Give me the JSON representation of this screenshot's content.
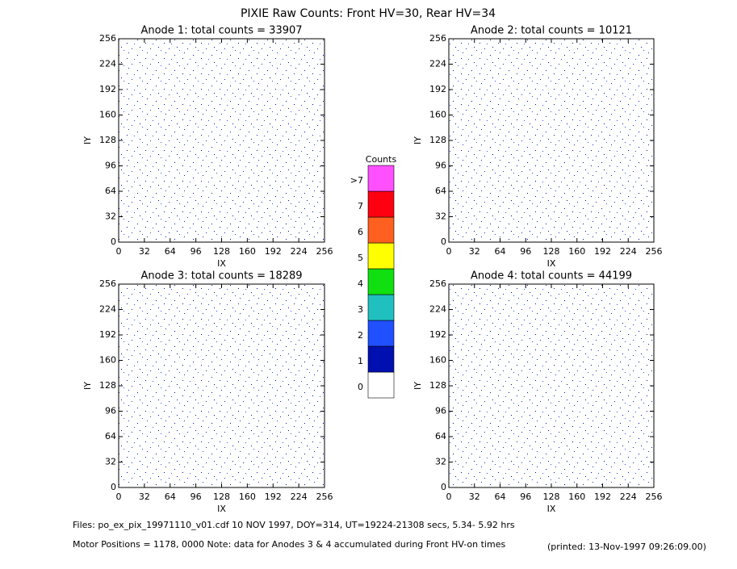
{
  "title": "PIXIE Raw Counts:  Front HV=30, Rear HV=34",
  "chart_data": [
    {
      "type": "heatmap",
      "title": "Anode 1: total counts = 33907",
      "x_label": "IX",
      "y_label": "IY",
      "xlim": [
        0,
        256
      ],
      "ylim": [
        0,
        256
      ],
      "xticks": [
        0,
        32,
        64,
        96,
        128,
        160,
        192,
        224,
        256
      ],
      "yticks": [
        0,
        32,
        64,
        96,
        128,
        160,
        192,
        224,
        256
      ]
    },
    {
      "type": "heatmap",
      "title": "Anode 2: total counts = 10121",
      "x_label": "IX",
      "y_label": "IY",
      "xlim": [
        0,
        256
      ],
      "ylim": [
        0,
        256
      ],
      "xticks": [
        0,
        32,
        64,
        96,
        128,
        160,
        192,
        224,
        256
      ],
      "yticks": [
        0,
        32,
        64,
        96,
        128,
        160,
        192,
        224,
        256
      ]
    },
    {
      "type": "heatmap",
      "title": "Anode 3: total counts = 18289",
      "x_label": "IX",
      "y_label": "IY",
      "xlim": [
        0,
        256
      ],
      "ylim": [
        0,
        256
      ],
      "xticks": [
        0,
        32,
        64,
        96,
        128,
        160,
        192,
        224,
        256
      ],
      "yticks": [
        0,
        32,
        64,
        96,
        128,
        160,
        192,
        224,
        256
      ]
    },
    {
      "type": "heatmap",
      "title": "Anode 4: total counts = 44199",
      "x_label": "IX",
      "y_label": "IY",
      "xlim": [
        0,
        256
      ],
      "ylim": [
        0,
        256
      ],
      "xticks": [
        0,
        32,
        64,
        96,
        128,
        160,
        192,
        224,
        256
      ],
      "yticks": [
        0,
        32,
        64,
        96,
        128,
        160,
        192,
        224,
        256
      ]
    }
  ],
  "colorbar": {
    "title": "Counts",
    "levels": [
      0,
      1,
      2,
      3,
      4,
      5,
      6,
      7,
      {
        "value": 8,
        "label": ">7"
      }
    ],
    "colors": [
      "#ffffff",
      "#0010b0",
      "#2050ff",
      "#20c0c0",
      "#10e010",
      "#ffff00",
      "#ff6020",
      "#ff0010",
      "#ff50ff"
    ]
  },
  "footer": {
    "files": "Files: po_ex_pix_19971110_v01.cdf    10 NOV 1997, DOY=314, UT=19224-21308 secs,  5.34- 5.92 hrs",
    "motor": "Motor Positions = 1178, 0000   Note: data for Anodes 3 & 4 accumulated during Front HV-on times",
    "printed": "(printed: 13-Nov-1997 09:26:09.00)"
  }
}
